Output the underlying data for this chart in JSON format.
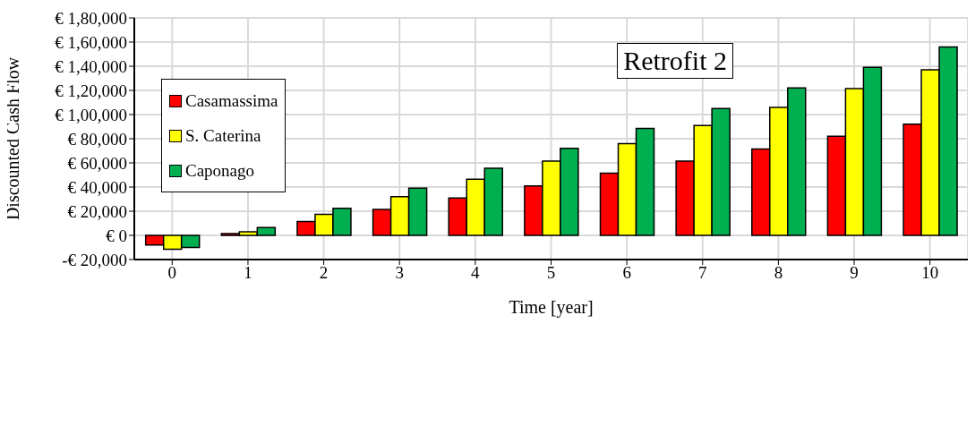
{
  "chart_data": {
    "type": "bar",
    "title": "Retrofit 2",
    "xlabel": "Time [year]",
    "ylabel": "Discounted Cash Flow",
    "categories": [
      "0",
      "1",
      "2",
      "3",
      "4",
      "5",
      "6",
      "7",
      "8",
      "9",
      "10"
    ],
    "series": [
      {
        "name": "Casamassima",
        "color": "#ff0000",
        "values": [
          -8000,
          1500,
          11500,
          21500,
          31000,
          41000,
          51500,
          61500,
          71500,
          82000,
          92000
        ]
      },
      {
        "name": "S. Caterina",
        "color": "#ffff00",
        "values": [
          -11500,
          3000,
          17500,
          32000,
          46500,
          61500,
          76000,
          91000,
          106000,
          121500,
          137000
        ]
      },
      {
        "name": "Caponago",
        "color": "#00b050",
        "values": [
          -10000,
          6500,
          22500,
          39000,
          55500,
          72000,
          88500,
          105000,
          122000,
          139000,
          156000
        ]
      }
    ],
    "ylim": [
      -20000,
      180000
    ],
    "yticks": [
      {
        "value": -20000,
        "label": "-€ 20,000"
      },
      {
        "value": 0,
        "label": "€ 0"
      },
      {
        "value": 20000,
        "label": "€ 20,000"
      },
      {
        "value": 40000,
        "label": "€ 40,000"
      },
      {
        "value": 60000,
        "label": "€ 60,000"
      },
      {
        "value": 80000,
        "label": "€ 80,000"
      },
      {
        "value": 100000,
        "label": "€ 1,00,000"
      },
      {
        "value": 120000,
        "label": "€ 1,20,000"
      },
      {
        "value": 140000,
        "label": "€ 1,40,000"
      },
      {
        "value": 160000,
        "label": "€ 1,60,000"
      },
      {
        "value": 180000,
        "label": "€ 1,80,000"
      }
    ],
    "grid": true,
    "legend": "top left"
  }
}
